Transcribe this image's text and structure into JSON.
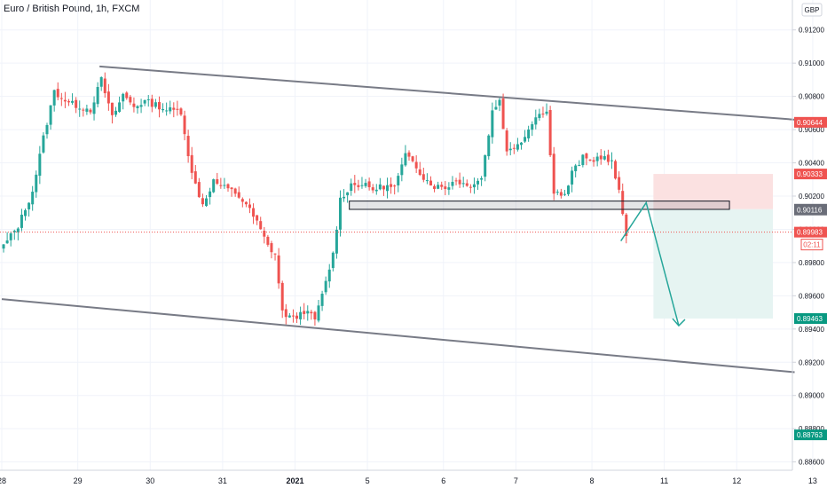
{
  "header": {
    "title": "Euro / British Pound, 1h, FXCM"
  },
  "currency_badge": "GBP",
  "chart_data": {
    "type": "candlestick",
    "title": "Euro / British Pound, 1h, FXCM",
    "ylim": [
      0.8855,
      0.9138
    ],
    "y_ticks": [
      "0.91200",
      "0.91000",
      "0.90800",
      "0.90600",
      "0.90400",
      "0.90200",
      "0.90000",
      "0.89800",
      "0.89600",
      "0.89400",
      "0.89200",
      "0.89000",
      "0.88800",
      "0.88600"
    ],
    "x_ticks": [
      {
        "label": "28",
        "slot": 0
      },
      {
        "label": "29",
        "slot": 21
      },
      {
        "label": "30",
        "slot": 41
      },
      {
        "label": "31",
        "slot": 61
      },
      {
        "label": "2021",
        "slot": 81
      },
      {
        "label": "5",
        "slot": 101
      },
      {
        "label": "6",
        "slot": 122
      },
      {
        "label": "7",
        "slot": 142
      },
      {
        "label": "8",
        "slot": 163
      },
      {
        "label": "11",
        "slot": 183
      },
      {
        "label": "12",
        "slot": 203
      },
      {
        "label": "13",
        "slot": 224
      }
    ],
    "price_labels": [
      {
        "value": 0.90644,
        "text": "0.90644",
        "color": "#ef5350"
      },
      {
        "value": 0.90333,
        "text": "0.90333",
        "color": "#ef5350"
      },
      {
        "value": 0.90121,
        "text": "0.90121",
        "color": "#6a6d78"
      },
      {
        "value": 0.90116,
        "text": "0.90116",
        "color": "#6a6d78"
      },
      {
        "value": 0.89983,
        "text": "0.89983",
        "color": "#ef5350"
      },
      {
        "value": 0.89463,
        "text": "0.89463",
        "color": "#089981"
      },
      {
        "value": 0.88763,
        "text": "0.88763",
        "color": "#089981"
      }
    ],
    "countdown": "02:11",
    "close_path": [
      [
        0,
        0.899
      ],
      [
        4,
        0.9002
      ],
      [
        8,
        0.9023
      ],
      [
        11,
        0.9055
      ],
      [
        14,
        0.9083
      ],
      [
        18,
        0.9076
      ],
      [
        21,
        0.9074
      ],
      [
        24,
        0.9072
      ],
      [
        27,
        0.909
      ],
      [
        30,
        0.9067
      ],
      [
        33,
        0.9081
      ],
      [
        36,
        0.9074
      ],
      [
        39,
        0.9077
      ],
      [
        42,
        0.9075
      ],
      [
        45,
        0.9072
      ],
      [
        49,
        0.9071
      ],
      [
        52,
        0.9033
      ],
      [
        55,
        0.9015
      ],
      [
        58,
        0.9029
      ],
      [
        61,
        0.9025
      ],
      [
        64,
        0.9022
      ],
      [
        67,
        0.9015
      ],
      [
        70,
        0.9004
      ],
      [
        73,
        0.899
      ],
      [
        75,
        0.8985
      ],
      [
        77,
        0.895
      ],
      [
        80,
        0.8946
      ],
      [
        83,
        0.8951
      ],
      [
        86,
        0.8946
      ],
      [
        88,
        0.896
      ],
      [
        91,
        0.8985
      ],
      [
        93,
        0.9018
      ],
      [
        96,
        0.9027
      ],
      [
        99,
        0.9027
      ],
      [
        102,
        0.9024
      ],
      [
        105,
        0.9026
      ],
      [
        108,
        0.9025
      ],
      [
        111,
        0.9044
      ],
      [
        113,
        0.9042
      ],
      [
        116,
        0.9031
      ],
      [
        119,
        0.9026
      ],
      [
        122,
        0.9025
      ],
      [
        125,
        0.903
      ],
      [
        128,
        0.9026
      ],
      [
        132,
        0.9031
      ],
      [
        135,
        0.9071
      ],
      [
        137,
        0.9078
      ],
      [
        139,
        0.9046
      ],
      [
        142,
        0.9052
      ],
      [
        144,
        0.9056
      ],
      [
        147,
        0.9069
      ],
      [
        150,
        0.907
      ],
      [
        152,
        0.9023
      ],
      [
        155,
        0.902
      ],
      [
        157,
        0.9034
      ],
      [
        160,
        0.9043
      ],
      [
        162,
        0.9041
      ],
      [
        165,
        0.9044
      ],
      [
        168,
        0.904
      ],
      [
        170,
        0.9022
      ],
      [
        172,
        0.8996
      ]
    ],
    "trend_lines": [
      {
        "from": [
          27,
          0.9098
        ],
        "to": [
          219,
          0.9066
        ],
        "color": "#787b86"
      },
      {
        "from": [
          0,
          0.8958
        ],
        "to": [
          219,
          0.8914
        ],
        "color": "#787b86"
      }
    ],
    "zone": {
      "slot_from": 96,
      "slot_to": 201,
      "y_top": 0.9017,
      "y_bottom": 0.9012
    },
    "projection": [
      [
        171,
        0.8993
      ],
      [
        178,
        0.9016
      ],
      [
        187,
        0.8942
      ]
    ],
    "position": {
      "slot_from": 180,
      "slot_to": 213,
      "target": 0.90333,
      "entry": 0.90121,
      "stop": 0.89463
    },
    "colors": {
      "up": "#26a69a",
      "down": "#ef5350",
      "trend": "#787b86",
      "target_fill": "#fbe1e1",
      "stop_fill": "#e6f4f2",
      "projection": "#26a69a"
    },
    "grid": true
  }
}
